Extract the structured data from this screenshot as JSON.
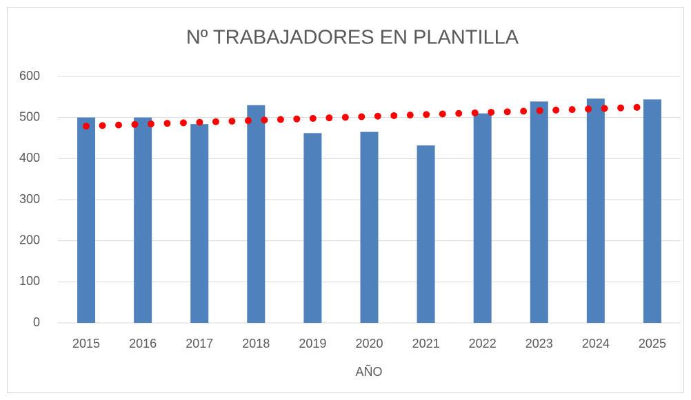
{
  "chart_data": {
    "type": "bar",
    "title": "Nº TRABAJADORES EN PLANTILLA",
    "x_label": "AÑO",
    "categories": [
      "2015",
      "2016",
      "2017",
      "2018",
      "2019",
      "2020",
      "2021",
      "2022",
      "2023",
      "2024",
      "2025"
    ],
    "values": [
      500,
      500,
      484,
      530,
      462,
      465,
      432,
      510,
      539,
      546,
      544
    ],
    "color": "#4f81bd",
    "trendline": {
      "color": "#ff0000",
      "style": "dotted",
      "values": [
        479,
        526
      ]
    },
    "ylim": [
      0,
      600
    ],
    "yticks": [
      0,
      100,
      200,
      300,
      400,
      500,
      600
    ],
    "grid": true
  }
}
